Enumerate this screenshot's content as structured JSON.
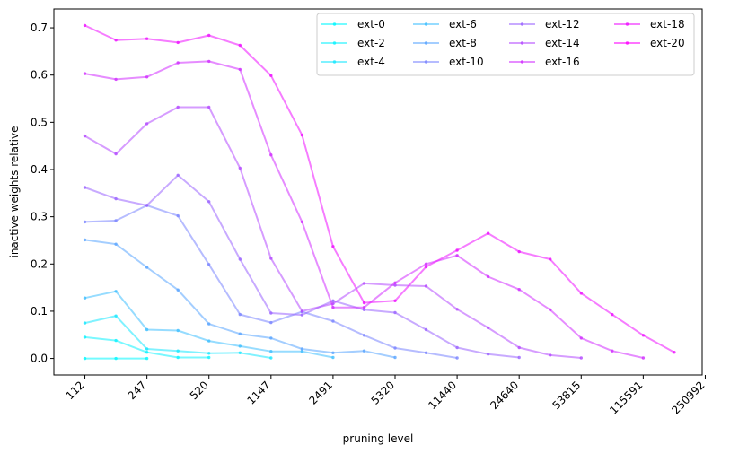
{
  "chart_data": {
    "type": "line",
    "xlabel": "pruning level",
    "ylabel": "inactive weights relative",
    "x_tick_labels": [
      "112",
      "247",
      "520",
      "1147",
      "2491",
      "5320",
      "11440",
      "24640",
      "53815",
      "115591",
      "250992"
    ],
    "y_ticks": [
      0.0,
      0.1,
      0.2,
      0.3,
      0.4,
      0.5,
      0.6,
      0.7
    ],
    "y_tick_labels": [
      "0.0",
      "0.1",
      "0.2",
      "0.3",
      "0.4",
      "0.5",
      "0.6",
      "0.7"
    ],
    "ylim": [
      -0.035,
      0.74
    ],
    "x_index_range": [
      -1,
      19.9
    ],
    "grid": false,
    "legend_position": "top-right",
    "legend_columns": 4,
    "series": [
      {
        "name": "ext-0",
        "color": "#00f8ff",
        "values": [
          0.0,
          0.0,
          0.0
        ]
      },
      {
        "name": "ext-2",
        "color": "#0bf3ff",
        "values": [
          0.045,
          0.038,
          0.013,
          0.002,
          0.002
        ]
      },
      {
        "name": "ext-4",
        "color": "#18e7ff",
        "values": [
          0.075,
          0.09,
          0.02,
          0.016,
          0.011,
          0.012,
          0.001
        ]
      },
      {
        "name": "ext-6",
        "color": "#40bfff",
        "values": [
          0.128,
          0.142,
          0.061,
          0.059,
          0.037,
          0.026,
          0.015,
          0.015,
          0.002
        ]
      },
      {
        "name": "ext-8",
        "color": "#5aa5ff",
        "values": [
          0.251,
          0.242,
          0.193,
          0.145,
          0.073,
          0.052,
          0.043,
          0.02,
          0.012,
          0.016,
          0.002
        ]
      },
      {
        "name": "ext-10",
        "color": "#7a85ff",
        "values": [
          0.289,
          0.292,
          0.324,
          0.302,
          0.199,
          0.093,
          0.076,
          0.099,
          0.079,
          0.049,
          0.022,
          0.012,
          0.001
        ]
      },
      {
        "name": "ext-12",
        "color": "#9b64ff",
        "values": [
          0.362,
          0.338,
          0.324,
          0.388,
          0.332,
          0.21,
          0.096,
          0.092,
          0.122,
          0.103,
          0.097,
          0.061,
          0.023,
          0.009,
          0.002
        ]
      },
      {
        "name": "ext-14",
        "color": "#b44bff",
        "values": [
          0.471,
          0.433,
          0.497,
          0.532,
          0.532,
          0.403,
          0.212,
          0.1,
          0.116,
          0.159,
          0.155,
          0.153,
          0.104,
          0.065,
          0.023,
          0.007,
          0.001
        ]
      },
      {
        "name": "ext-16",
        "color": "#d12eff",
        "values": [
          0.603,
          0.591,
          0.596,
          0.626,
          0.629,
          0.612,
          0.431,
          0.289,
          0.108,
          0.108,
          0.16,
          0.2,
          0.218,
          0.173,
          0.146,
          0.103,
          0.043,
          0.016,
          0.001
        ]
      },
      {
        "name": "ext-18",
        "color": "#ef10ff",
        "values": [
          0.705,
          0.674,
          0.677,
          0.669,
          0.684,
          0.663,
          0.599,
          0.473,
          0.237,
          0.118,
          0.122,
          0.194,
          0.229,
          0.265,
          0.226,
          0.21,
          0.138,
          0.093,
          0.049,
          0.013
        ]
      },
      {
        "name": "ext-20",
        "color": "#ff00ff",
        "values": []
      }
    ]
  }
}
